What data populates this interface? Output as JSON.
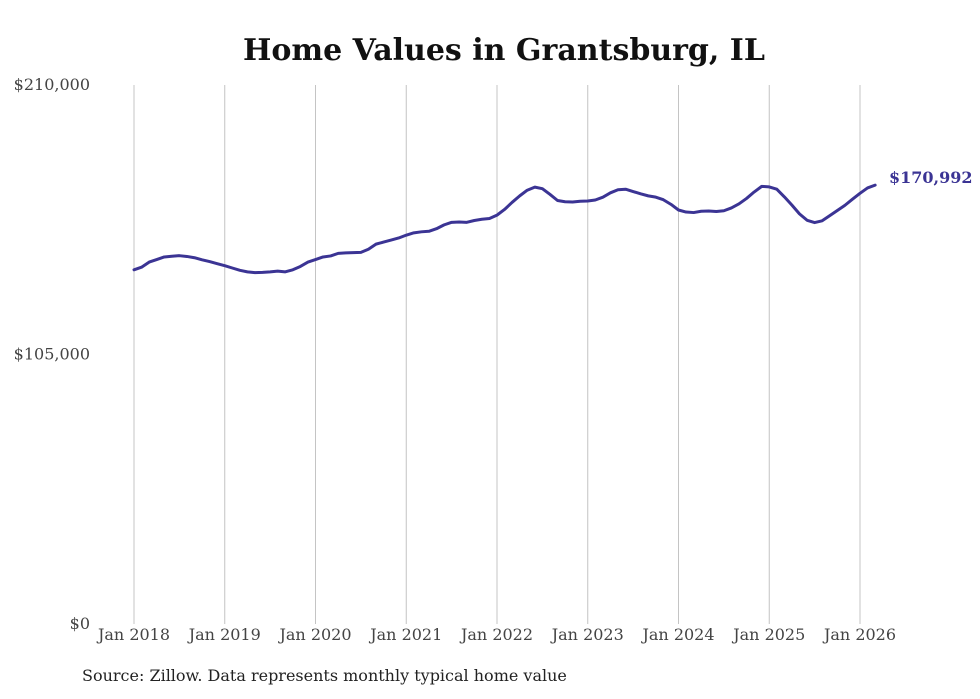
{
  "chart_data": {
    "type": "line",
    "title": "Home Values in Grantsburg, IL",
    "xlabel": "",
    "ylabel": "",
    "ylim": [
      0,
      210000
    ],
    "yticks": [
      0,
      105000,
      210000
    ],
    "ytick_labels": [
      "$0",
      "$105,000",
      "$210,000"
    ],
    "xticks": [
      2018,
      2019,
      2020,
      2021,
      2022,
      2023,
      2024,
      2025,
      2026
    ],
    "xtick_labels": [
      "Jan 2018",
      "Jan 2019",
      "Jan 2020",
      "Jan 2021",
      "Jan 2022",
      "Jan 2023",
      "Jan 2024",
      "Jan 2025",
      "Jan 2026"
    ],
    "xlim": [
      2018,
      2026.25
    ],
    "grid": "vertical",
    "color": "#3b3494",
    "end_label": "$170,992",
    "series": [
      {
        "name": "Typical home value",
        "x": [
          2018.0,
          2018.083,
          2018.167,
          2018.25,
          2018.333,
          2018.417,
          2018.5,
          2018.583,
          2018.667,
          2018.75,
          2018.833,
          2018.917,
          2019.0,
          2019.083,
          2019.167,
          2019.25,
          2019.333,
          2019.417,
          2019.5,
          2019.583,
          2019.667,
          2019.75,
          2019.833,
          2019.917,
          2020.0,
          2020.083,
          2020.167,
          2020.25,
          2020.333,
          2020.417,
          2020.5,
          2020.583,
          2020.667,
          2020.75,
          2020.833,
          2020.917,
          2021.0,
          2021.083,
          2021.167,
          2021.25,
          2021.333,
          2021.417,
          2021.5,
          2021.583,
          2021.667,
          2021.75,
          2021.833,
          2021.917,
          2022.0,
          2022.083,
          2022.167,
          2022.25,
          2022.333,
          2022.417,
          2022.5,
          2022.583,
          2022.667,
          2022.75,
          2022.833,
          2022.917,
          2023.0,
          2023.083,
          2023.167,
          2023.25,
          2023.333,
          2023.417,
          2023.5,
          2023.583,
          2023.667,
          2023.75,
          2023.833,
          2023.917,
          2024.0,
          2024.083,
          2024.167,
          2024.25,
          2024.333,
          2024.417,
          2024.5,
          2024.583,
          2024.667,
          2024.75,
          2024.833,
          2024.917,
          2025.0,
          2025.083,
          2025.167,
          2025.25,
          2025.333,
          2025.417,
          2025.5,
          2025.583,
          2025.667,
          2025.75,
          2025.833,
          2025.917,
          2026.0,
          2026.083,
          2026.167
        ],
        "values": [
          138000,
          139000,
          141000,
          142000,
          143000,
          143300,
          143500,
          143200,
          142700,
          141900,
          141200,
          140400,
          139600,
          138700,
          137800,
          137200,
          136900,
          137000,
          137200,
          137500,
          137200,
          138000,
          139300,
          141000,
          142000,
          143000,
          143400,
          144400,
          144600,
          144700,
          144800,
          146000,
          148000,
          148800,
          149600,
          150400,
          151500,
          152400,
          152800,
          153000,
          154000,
          155500,
          156500,
          156600,
          156500,
          157200,
          157700,
          158000,
          159300,
          161500,
          164300,
          166800,
          169000,
          170200,
          169600,
          167400,
          165000,
          164500,
          164400,
          164700,
          164800,
          165200,
          166300,
          168000,
          169200,
          169400,
          168500,
          167600,
          166800,
          166300,
          165300,
          163500,
          161300,
          160500,
          160300,
          160800,
          160900,
          160700,
          161000,
          162100,
          163700,
          165800,
          168300,
          170500,
          170300,
          169400,
          166400,
          163200,
          159800,
          157300,
          156400,
          157100,
          159100,
          161100,
          163100,
          165500,
          167800,
          169900,
          170992
        ]
      }
    ]
  },
  "source_text": "Source: Zillow. Data represents monthly typical home value"
}
